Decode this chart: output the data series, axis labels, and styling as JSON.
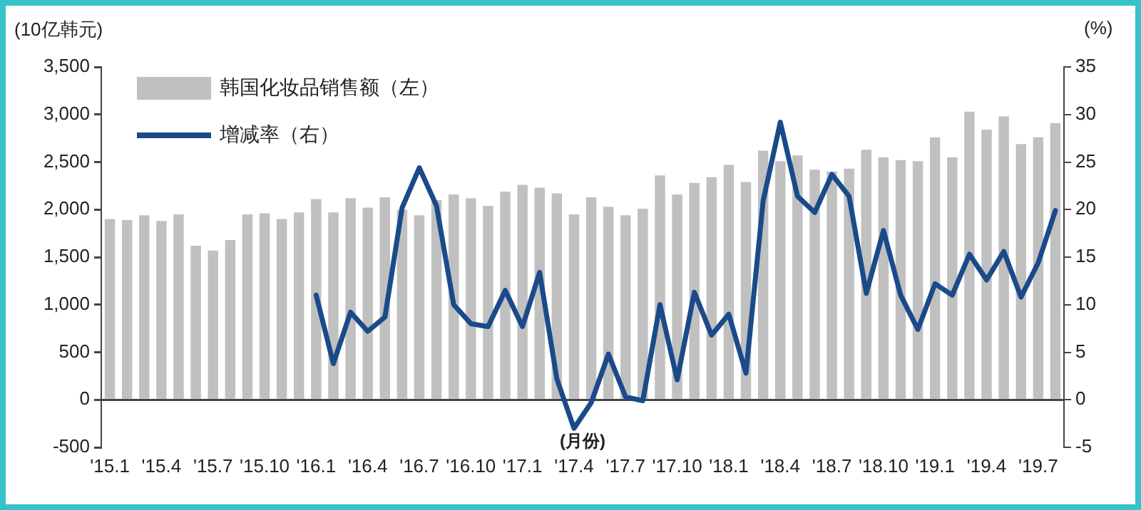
{
  "chart_data": {
    "type": "bar",
    "ylabel": "(10亿韩元)",
    "y2label": "(%)",
    "xlabel": "(月份)",
    "legend": "top left",
    "categories": [
      "'15.1",
      null,
      null,
      "'15.4",
      null,
      null,
      "'15.7",
      null,
      null,
      "'15.10",
      null,
      null,
      "'16.1",
      null,
      null,
      "'16.4",
      null,
      null,
      "'16.7",
      null,
      null,
      "'16.10",
      null,
      null,
      "'17.1",
      null,
      null,
      "'17.4",
      null,
      null,
      "'17.7",
      null,
      null,
      "'17.10",
      null,
      null,
      "'18.1",
      null,
      null,
      "'18.4",
      null,
      null,
      "'18.7",
      null,
      null,
      "'18.10",
      null,
      null,
      "'19.1",
      null,
      null,
      "'19.4",
      null,
      null,
      "'19.7",
      null
    ],
    "series": [
      {
        "name": "韩国化妆品销售额（左）",
        "color": "#c0c0c0",
        "values": [
          1900,
          1890,
          1940,
          1880,
          1950,
          1620,
          1570,
          1680,
          1950,
          1960,
          1900,
          1970,
          2110,
          1970,
          2120,
          2020,
          2130,
          2000,
          1940,
          2100,
          2160,
          2120,
          2040,
          2190,
          2260,
          2230,
          2170,
          1950,
          2130,
          2030,
          1940,
          2010,
          2360,
          2160,
          2280,
          2340,
          2470,
          2290,
          2620,
          2510,
          2570,
          2420,
          2400,
          2430,
          2630,
          2550,
          2520,
          2510,
          2760,
          2550,
          3030,
          2840,
          2980,
          2690,
          2760,
          2910
        ]
      },
      {
        "name": "增减率（右）",
        "type": "line",
        "axis": "y2",
        "color": "#1a4a8a",
        "values": [
          null,
          null,
          null,
          null,
          null,
          null,
          null,
          null,
          null,
          null,
          null,
          null,
          11.0,
          3.8,
          9.2,
          7.2,
          8.7,
          20.2,
          24.4,
          20.4,
          10.0,
          8.0,
          7.7,
          11.5,
          7.7,
          13.4,
          2.2,
          -3.0,
          -0.3,
          4.8,
          0.3,
          -0.1,
          10.0,
          2.1,
          11.3,
          6.8,
          9.0,
          2.8,
          20.9,
          29.2,
          21.4,
          19.7,
          23.7,
          21.4,
          11.2,
          17.8,
          11.0,
          7.4,
          12.2,
          11.0,
          15.3,
          12.6,
          15.6,
          10.8,
          14.4,
          19.9
        ]
      }
    ],
    "ylim": [
      -500,
      3500
    ],
    "yticks": [
      -500,
      0,
      500,
      {
        "value": 1000,
        "label": "1,000"
      },
      {
        "value": 1500,
        "label": "1,500"
      },
      {
        "value": 2000,
        "label": "2,000"
      },
      {
        "value": 2500,
        "label": "2,500"
      },
      {
        "value": 3000,
        "label": "3,000"
      },
      {
        "value": 3500,
        "label": "3,500"
      }
    ],
    "y2lim": [
      -5,
      35
    ],
    "y2ticks": [
      -5,
      0,
      5,
      10,
      15,
      20,
      25,
      30,
      35
    ]
  }
}
